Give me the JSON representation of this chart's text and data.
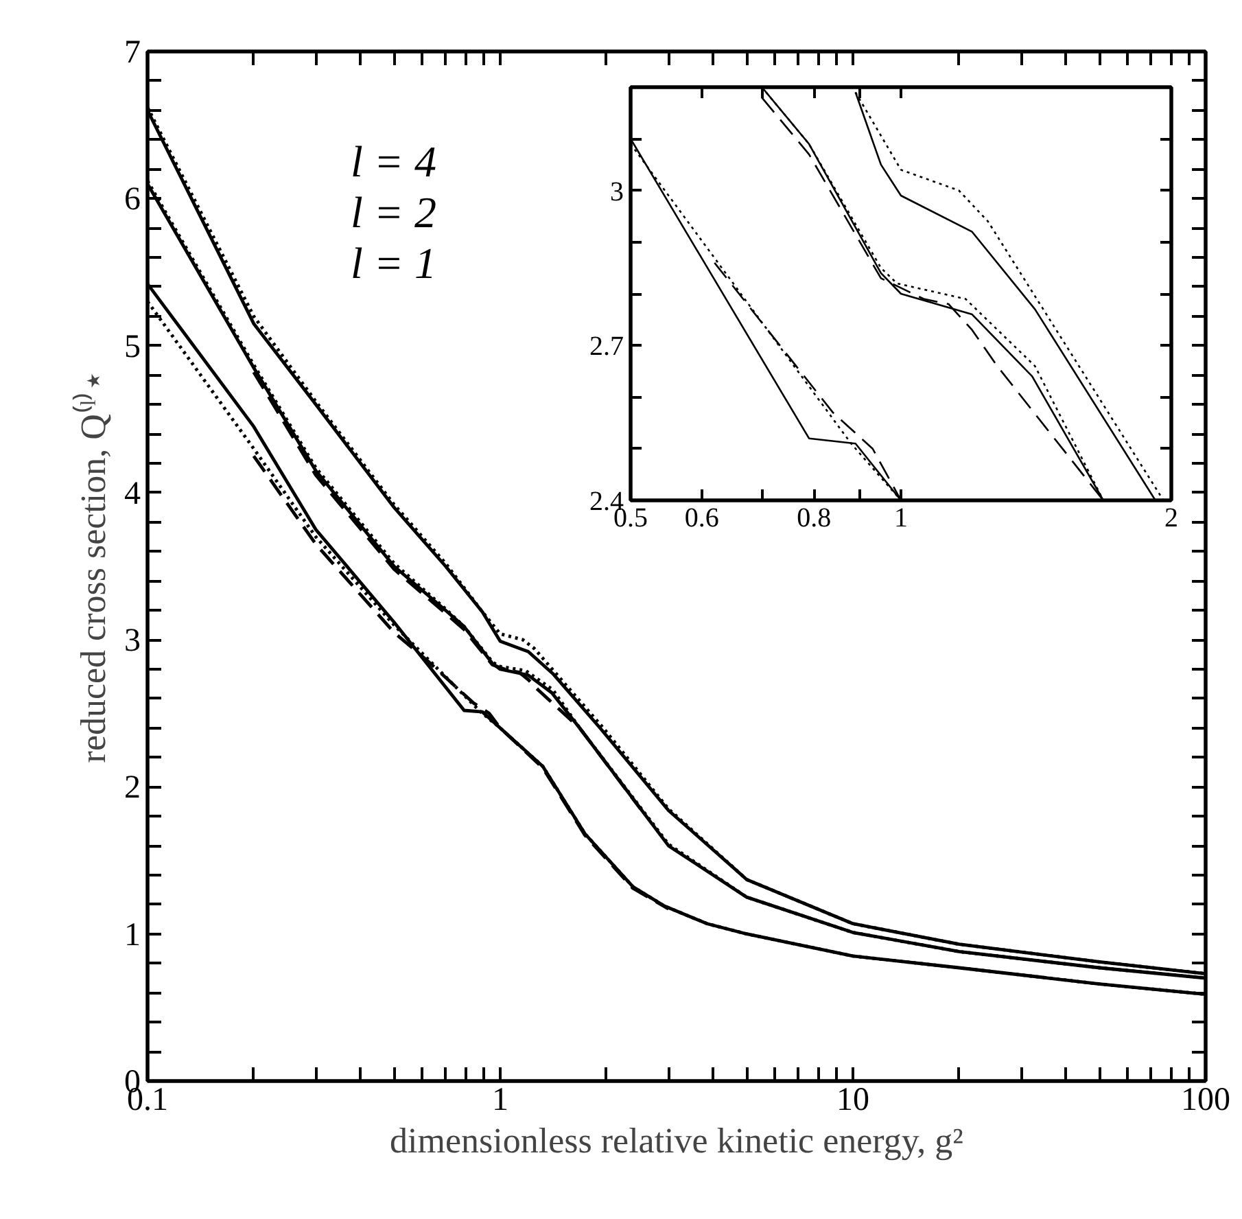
{
  "chart_data": [
    {
      "type": "line",
      "xlabel": "dimensionless relative kinetic energy, g²",
      "ylabel": "reduced cross section, Q⁽ˡ⁾⋆",
      "log": "x",
      "grid": false,
      "xlim": [
        0.1,
        100
      ],
      "ylim": [
        0,
        7
      ],
      "xticks": [
        0.1,
        {
          "value": 0.2,
          "label": null
        },
        {
          "value": 0.3,
          "label": null
        },
        {
          "value": 0.4,
          "label": null
        },
        {
          "value": 0.5,
          "label": null
        },
        {
          "value": 0.6,
          "label": null
        },
        {
          "value": 0.7,
          "label": null
        },
        {
          "value": 0.8,
          "label": null
        },
        {
          "value": 0.9,
          "label": null
        },
        1,
        {
          "value": 2,
          "label": null
        },
        {
          "value": 3,
          "label": null
        },
        {
          "value": 4,
          "label": null
        },
        {
          "value": 5,
          "label": null
        },
        {
          "value": 6,
          "label": null
        },
        {
          "value": 7,
          "label": null
        },
        {
          "value": 8,
          "label": null
        },
        {
          "value": 9,
          "label": null
        },
        10,
        {
          "value": 20,
          "label": null
        },
        {
          "value": 30,
          "label": null
        },
        {
          "value": 40,
          "label": null
        },
        {
          "value": 50,
          "label": null
        },
        {
          "value": 60,
          "label": null
        },
        {
          "value": 70,
          "label": null
        },
        {
          "value": 80,
          "label": null
        },
        {
          "value": 90,
          "label": null
        },
        100
      ],
      "yticks": [
        0,
        {
          "value": 0.2,
          "label": null
        },
        {
          "value": 0.4,
          "label": null
        },
        {
          "value": 0.6,
          "label": null
        },
        {
          "value": 0.8,
          "label": null
        },
        1,
        {
          "value": 1.2,
          "label": null
        },
        {
          "value": 1.4,
          "label": null
        },
        {
          "value": 1.6,
          "label": null
        },
        {
          "value": 1.8,
          "label": null
        },
        2,
        {
          "value": 2.2,
          "label": null
        },
        {
          "value": 2.4,
          "label": null
        },
        {
          "value": 2.6,
          "label": null
        },
        {
          "value": 2.8,
          "label": null
        },
        3,
        {
          "value": 3.2,
          "label": null
        },
        {
          "value": 3.4,
          "label": null
        },
        {
          "value": 3.6,
          "label": null
        },
        {
          "value": 3.8,
          "label": null
        },
        4,
        {
          "value": 4.2,
          "label": null
        },
        {
          "value": 4.4,
          "label": null
        },
        {
          "value": 4.6,
          "label": null
        },
        {
          "value": 4.8,
          "label": null
        },
        5,
        {
          "value": 5.2,
          "label": null
        },
        {
          "value": 5.4,
          "label": null
        },
        {
          "value": 5.6,
          "label": null
        },
        {
          "value": 5.8,
          "label": null
        },
        6,
        {
          "value": 6.2,
          "label": null
        },
        {
          "value": 6.4,
          "label": null
        },
        {
          "value": 6.6,
          "label": null
        },
        {
          "value": 6.8,
          "label": null
        },
        7
      ],
      "annotations": [
        "l = 4",
        "l = 2",
        "l = 1"
      ],
      "series": [
        {
          "color": "#000000",
          "line_style": "solid",
          "x": [
            0.1,
            0.2,
            0.3,
            0.5,
            0.7,
            0.89,
            1.0,
            1.2,
            1.41,
            1.92,
            3,
            5,
            10,
            20,
            50,
            100
          ],
          "values": [
            6.6,
            5.15,
            4.6,
            3.9,
            3.5,
            3.19,
            2.99,
            2.92,
            2.77,
            2.4,
            1.84,
            1.37,
            1.07,
            0.93,
            0.81,
            0.73
          ]
        },
        {
          "color": "#000000",
          "line_style": "dotted",
          "x": [
            0.1,
            0.2,
            0.3,
            0.5,
            0.7,
            0.89,
            1.0,
            1.16,
            1.25,
            1.96,
            3,
            5,
            10,
            20,
            50,
            100
          ],
          "values": [
            6.62,
            5.2,
            4.62,
            3.92,
            3.52,
            3.19,
            3.04,
            3.0,
            2.94,
            2.4,
            1.85,
            1.37,
            1.07,
            0.93,
            0.81,
            0.73
          ]
        },
        {
          "color": "#000000",
          "line_style": "solid",
          "x": [
            0.1,
            0.2,
            0.3,
            0.5,
            0.7,
            0.79,
            0.95,
            1.0,
            1.2,
            1.4,
            1.68,
            3,
            5,
            10,
            20,
            50,
            100
          ],
          "values": [
            6.1,
            4.85,
            4.15,
            3.5,
            3.2,
            3.09,
            2.84,
            2.8,
            2.76,
            2.64,
            2.4,
            1.6,
            1.25,
            1.01,
            0.88,
            0.77,
            0.7
          ]
        },
        {
          "color": "#000000",
          "line_style": "dotted",
          "x": [
            0.1,
            0.2,
            0.3,
            0.5,
            0.7,
            0.79,
            0.95,
            0.99,
            1.18,
            1.41,
            1.68,
            3,
            5,
            10,
            20,
            50,
            100
          ],
          "values": [
            6.12,
            4.87,
            4.17,
            3.52,
            3.21,
            3.09,
            2.85,
            2.82,
            2.79,
            2.66,
            2.4,
            1.61,
            1.25,
            1.01,
            0.88,
            0.77,
            0.7
          ]
        },
        {
          "color": "#000000",
          "line_style": "dashed",
          "x": [
            0.2,
            0.3,
            0.5,
            0.7,
            0.79,
            0.95,
            1.06,
            1.13,
            1.2,
            1.28,
            1.68,
            2.5
          ],
          "values": [
            4.82,
            4.12,
            3.48,
            3.18,
            3.07,
            2.83,
            2.79,
            2.78,
            2.73,
            2.66,
            2.4,
            1.85
          ]
        },
        {
          "color": "#000000",
          "line_style": "solid",
          "x": [
            0.1,
            0.2,
            0.3,
            0.5,
            0.79,
            0.89,
            1.0,
            1.32,
            1.74,
            2.38,
            2.92,
            3.86,
            5,
            10,
            20,
            50,
            100
          ],
          "values": [
            5.42,
            4.45,
            3.75,
            3.12,
            2.52,
            2.51,
            2.4,
            2.14,
            1.68,
            1.32,
            1.19,
            1.07,
            1.0,
            0.85,
            0.77,
            0.66,
            0.59
          ]
        },
        {
          "color": "#000000",
          "line_style": "dotted",
          "x": [
            0.1,
            0.2,
            0.3,
            0.5,
            0.88,
            1.0,
            1.32,
            1.74,
            2.38,
            2.92,
            3.86,
            5,
            10,
            20,
            50,
            100
          ],
          "values": [
            5.3,
            4.3,
            3.7,
            3.1,
            2.51,
            2.4,
            2.14,
            1.68,
            1.32,
            1.19,
            1.07,
            1.0,
            0.85,
            0.77,
            0.66,
            0.59
          ]
        },
        {
          "color": "#000000",
          "line_style": "dashed",
          "x": [
            0.2,
            0.3,
            0.5,
            0.62,
            0.84,
            0.93,
            1.0,
            1.32,
            1.74,
            2.38,
            3
          ],
          "values": [
            4.25,
            3.65,
            3.05,
            2.86,
            2.57,
            2.5,
            2.4,
            2.13,
            1.67,
            1.31,
            1.17
          ]
        }
      ]
    },
    {
      "type": "line",
      "log": "x",
      "grid": false,
      "xlim": [
        0.5,
        2
      ],
      "ylim": [
        2.4,
        3.2
      ],
      "xticks": [
        0.5,
        0.6,
        {
          "value": 0.7,
          "label": null
        },
        0.8,
        {
          "value": 0.9,
          "label": null
        },
        1,
        2
      ],
      "yticks": [
        2.4,
        {
          "value": 2.5,
          "label": null
        },
        {
          "value": 2.6,
          "label": null
        },
        2.7,
        {
          "value": 2.8,
          "label": null
        },
        {
          "value": 2.9,
          "label": null
        },
        3,
        {
          "value": 3.1,
          "label": null
        },
        {
          "value": 3.2,
          "label": null
        }
      ],
      "series": [
        {
          "color": "#000000",
          "line_style": "solid",
          "x": [
            0.5,
            0.79,
            0.89,
            1.0
          ],
          "values": [
            3.1,
            2.52,
            2.51,
            2.4
          ]
        },
        {
          "color": "#000000",
          "line_style": "dotted",
          "x": [
            0.5,
            0.88,
            1.0
          ],
          "values": [
            3.09,
            2.51,
            2.4
          ]
        },
        {
          "color": "#000000",
          "line_style": "dashed",
          "x": [
            0.62,
            0.84,
            0.93,
            1.0
          ],
          "values": [
            2.86,
            2.57,
            2.5,
            2.4
          ]
        },
        {
          "color": "#000000",
          "line_style": "solid",
          "x": [
            0.7,
            0.79,
            0.95,
            1.0,
            1.2,
            1.4,
            1.68
          ],
          "values": [
            3.2,
            3.09,
            2.84,
            2.8,
            2.76,
            2.64,
            2.4
          ]
        },
        {
          "color": "#000000",
          "line_style": "dotted",
          "x": [
            0.7,
            0.79,
            0.95,
            0.99,
            1.18,
            1.41,
            1.68
          ],
          "values": [
            3.2,
            3.09,
            2.85,
            2.82,
            2.79,
            2.66,
            2.4
          ]
        },
        {
          "color": "#000000",
          "line_style": "dashed",
          "x": [
            0.7,
            0.79,
            0.95,
            1.06,
            1.13,
            1.2,
            1.28,
            1.68
          ],
          "values": [
            3.18,
            3.07,
            2.83,
            2.79,
            2.78,
            2.73,
            2.66,
            2.4
          ]
        },
        {
          "color": "#000000",
          "line_style": "solid",
          "x": [
            0.89,
            0.95,
            1.0,
            1.2,
            1.41,
            1.92
          ],
          "values": [
            3.19,
            3.05,
            2.99,
            2.92,
            2.77,
            2.4
          ]
        },
        {
          "color": "#000000",
          "line_style": "dotted",
          "x": [
            0.89,
            1.0,
            1.16,
            1.25,
            1.96
          ],
          "values": [
            3.19,
            3.04,
            3.0,
            2.94,
            2.4
          ]
        }
      ]
    }
  ]
}
